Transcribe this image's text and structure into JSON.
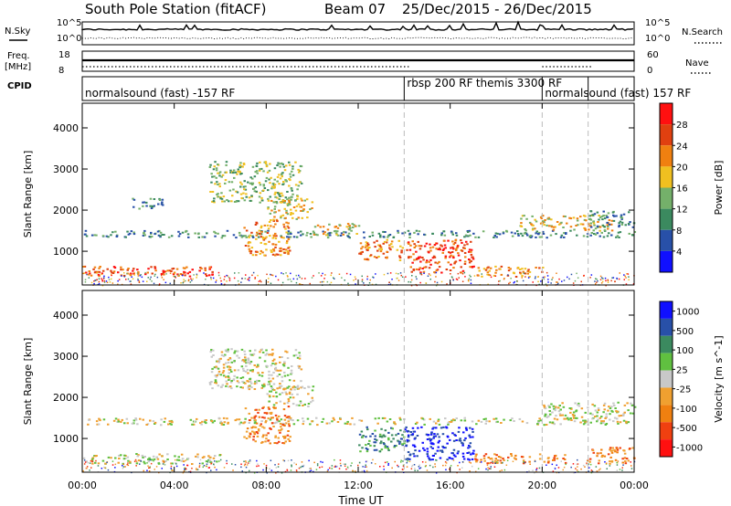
{
  "header": {
    "station": "South Pole Station (fitACF)",
    "beam": "Beam 07",
    "daterange": "25/Dec/2015 - 26/Dec/2015"
  },
  "side_labels": {
    "nsky": "N.Sky",
    "nsearch": "N.Search",
    "freq_top": "Freq.",
    "freq_unit": "[MHz]",
    "nave": "Nave",
    "cpid": "CPID"
  },
  "small_ticks": {
    "nsky_left": [
      "10^5",
      "10^0"
    ],
    "nsky_right": [
      "10^5",
      "10^0"
    ],
    "freq_left": [
      "18",
      "8"
    ],
    "nave_right": [
      "60",
      "0"
    ]
  },
  "cpid_labels": [
    {
      "text": "normalsound (fast) -157 RF",
      "at": 0.0
    },
    {
      "text": "rbsp 200 RF",
      "at": 14.0
    },
    {
      "text": "themis 3300 RF",
      "at": 17.0
    },
    {
      "text": "normalsound (fast) 157 RF",
      "at": 20.0
    }
  ],
  "cpid_boundaries": [
    14.0,
    20.0,
    22.0
  ],
  "colors": {
    "power": [
      "#1010ff",
      "#2850a8",
      "#3b8a5f",
      "#74b06a",
      "#f0c020",
      "#f08010",
      "#e04010",
      "#ff1010"
    ],
    "velocity": [
      "#ff1010",
      "#f04010",
      "#f08010",
      "#f0a030",
      "#c8c8c8",
      "#60c040",
      "#3b8a5f",
      "#2850a8",
      "#1010ff"
    ]
  },
  "chart_data": [
    {
      "type": "heatmap",
      "panel": "power",
      "xlabel": "Time UT",
      "ylabel": "Slant Range [km]",
      "x_ticks": [
        "00:00",
        "04:00",
        "08:00",
        "12:00",
        "16:00",
        "20:00",
        "00:00"
      ],
      "x_tick_hours": [
        0,
        4,
        8,
        12,
        16,
        20,
        24
      ],
      "xlim": [
        0,
        24
      ],
      "ylim": [
        180,
        4600
      ],
      "y_ticks": [
        1000,
        2000,
        3000,
        4000
      ],
      "colorbar_label": "Power [dB]",
      "colorbar_ticks": [
        "4",
        "8",
        "12",
        "16",
        "20",
        "24",
        "28"
      ],
      "colorbar_range": [
        0,
        32
      ],
      "features": [
        {
          "t": [
            0,
            6
          ],
          "r": [
            400,
            650
          ],
          "level": 6
        },
        {
          "t": [
            0,
            24
          ],
          "r": [
            1350,
            1520
          ],
          "level": 2
        },
        {
          "t": [
            2,
            3.5
          ],
          "r": [
            2050,
            2300
          ],
          "level": 2
        },
        {
          "t": [
            5.5,
            9.5
          ],
          "r": [
            2200,
            3200
          ],
          "level": 3
        },
        {
          "t": [
            7,
            9
          ],
          "r": [
            900,
            1800
          ],
          "level": 5
        },
        {
          "t": [
            8,
            10
          ],
          "r": [
            1800,
            2300
          ],
          "level": 4
        },
        {
          "t": [
            10,
            12
          ],
          "r": [
            1400,
            1700
          ],
          "level": 4
        },
        {
          "t": [
            12,
            14
          ],
          "r": [
            800,
            1300
          ],
          "level": 5
        },
        {
          "t": [
            14,
            17
          ],
          "r": [
            500,
            1300
          ],
          "level": 6
        },
        {
          "t": [
            17,
            20
          ],
          "r": [
            400,
            650
          ],
          "level": 5
        },
        {
          "t": [
            19,
            23
          ],
          "r": [
            1500,
            1900
          ],
          "level": 4
        },
        {
          "t": [
            22,
            24
          ],
          "r": [
            1600,
            2000
          ],
          "level": 2
        }
      ]
    },
    {
      "type": "heatmap",
      "panel": "velocity",
      "xlabel": "Time UT",
      "ylabel": "Slant Range [km]",
      "x_ticks": [
        "00:00",
        "04:00",
        "08:00",
        "12:00",
        "16:00",
        "20:00",
        "00:00"
      ],
      "x_tick_hours": [
        0,
        4,
        8,
        12,
        16,
        20,
        24
      ],
      "xlim": [
        0,
        24
      ],
      "ylim": [
        180,
        4600
      ],
      "y_ticks": [
        1000,
        2000,
        3000,
        4000
      ],
      "colorbar_label": "Velocity [m s^-1]",
      "colorbar_ticks": [
        "1000",
        "500",
        "100",
        "25",
        "-25",
        "-100",
        "-500",
        "-1000"
      ],
      "features": [
        {
          "t": [
            0,
            6
          ],
          "r": [
            400,
            650
          ],
          "level": 4
        },
        {
          "t": [
            0,
            24
          ],
          "r": [
            1350,
            1520
          ],
          "level": 4
        },
        {
          "t": [
            5.5,
            9.5
          ],
          "r": [
            2200,
            3200
          ],
          "level": 4
        },
        {
          "t": [
            7,
            9
          ],
          "r": [
            900,
            1800
          ],
          "level": 2
        },
        {
          "t": [
            8,
            10
          ],
          "r": [
            1800,
            2300
          ],
          "level": 4
        },
        {
          "t": [
            12,
            14
          ],
          "r": [
            700,
            1300
          ],
          "level": 6
        },
        {
          "t": [
            14,
            17
          ],
          "r": [
            500,
            1300
          ],
          "level": 8
        },
        {
          "t": [
            17,
            21
          ],
          "r": [
            400,
            650
          ],
          "level": 2
        },
        {
          "t": [
            20,
            24
          ],
          "r": [
            1500,
            1900
          ],
          "level": 4
        },
        {
          "t": [
            22,
            24
          ],
          "r": [
            400,
            800
          ],
          "level": 2
        }
      ]
    }
  ]
}
